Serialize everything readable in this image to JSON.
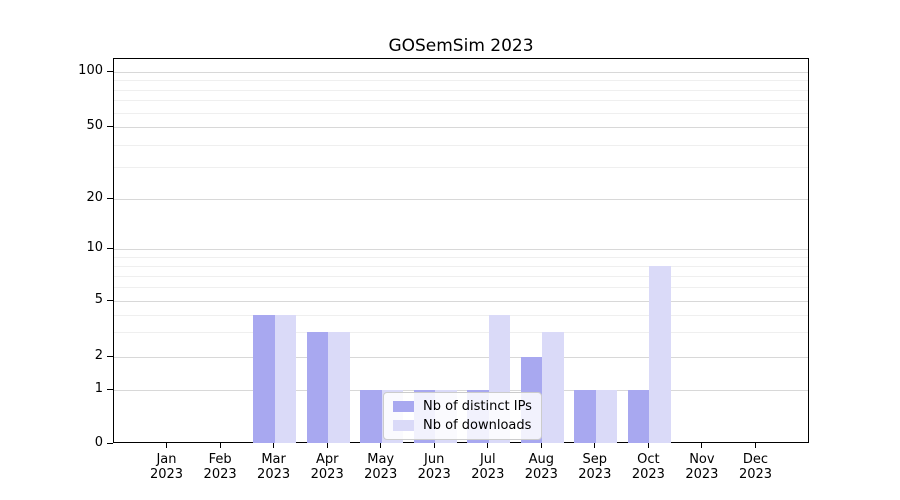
{
  "title": "GOSemSim 2023",
  "legend": {
    "items": [
      {
        "label": "Nb of distinct IPs",
        "color": "#a8a8f0"
      },
      {
        "label": "Nb of downloads",
        "color": "#dadaf8"
      }
    ]
  },
  "axes": {
    "y_tick_labels": [
      "100",
      "50",
      "20",
      "10",
      "5",
      "2",
      "1",
      "0"
    ],
    "x_year": "2023",
    "months": [
      "Jan",
      "Feb",
      "Mar",
      "Apr",
      "May",
      "Jun",
      "Jul",
      "Aug",
      "Sep",
      "Oct",
      "Nov",
      "Dec"
    ]
  },
  "chart_data": {
    "type": "bar",
    "title": "GOSemSim 2023",
    "categories": [
      "Jan 2023",
      "Feb 2023",
      "Mar 2023",
      "Apr 2023",
      "May 2023",
      "Jun 2023",
      "Jul 2023",
      "Aug 2023",
      "Sep 2023",
      "Oct 2023",
      "Nov 2023",
      "Dec 2023"
    ],
    "series": [
      {
        "name": "Nb of distinct IPs",
        "color": "#a8a8f0",
        "values": [
          0,
          0,
          4,
          3,
          1,
          1,
          1,
          2,
          1,
          1,
          0,
          0
        ]
      },
      {
        "name": "Nb of downloads",
        "color": "#dadaf8",
        "values": [
          0,
          0,
          4,
          3,
          1,
          1,
          4,
          3,
          1,
          8,
          0,
          0
        ]
      }
    ],
    "xlabel": "",
    "ylabel": "",
    "yscale": "log (zero pinned at baseline)",
    "ylim": [
      0,
      115
    ],
    "yticks_major": [
      1,
      2,
      5,
      10,
      20,
      50,
      100
    ],
    "yticks_minor": [
      3,
      4,
      6,
      7,
      8,
      9,
      30,
      40,
      60,
      70,
      80,
      90
    ],
    "grid": "horizontal major+minor",
    "legend_position": "lower center"
  }
}
